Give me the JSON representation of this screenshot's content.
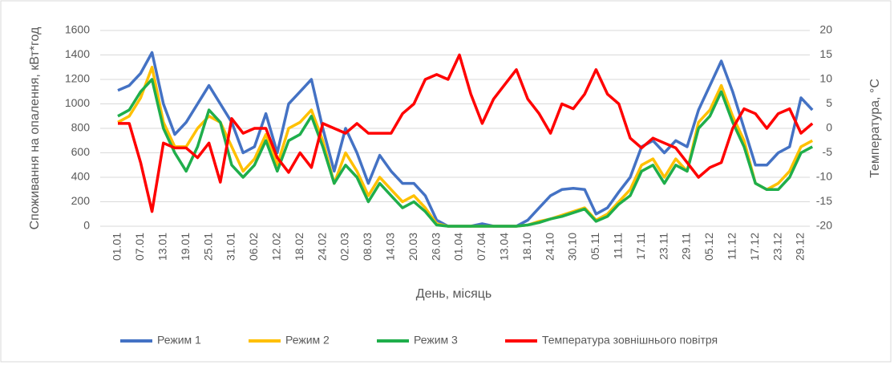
{
  "chart_data": {
    "type": "line",
    "xlabel": "День, місяць",
    "ylabel": "Споживання на опалення, кВт*год",
    "y2label": "Температура, °С",
    "categories": [
      "01.01",
      null,
      "07.01",
      null,
      "13.01",
      null,
      "19.01",
      null,
      "25.01",
      null,
      "31.01",
      null,
      "06.02",
      null,
      "12.02",
      null,
      "18.02",
      null,
      "24.02",
      null,
      "02.03",
      null,
      "08.03",
      null,
      "14.03",
      null,
      "20.03",
      null,
      "26.03",
      null,
      "01.04",
      null,
      "07.04",
      null,
      "13.04",
      null,
      "18.10",
      null,
      "24.10",
      null,
      "30.10",
      null,
      "05.11",
      null,
      "11.11",
      null,
      "17.11",
      null,
      "23.11",
      null,
      "29.11",
      null,
      "05.12",
      null,
      "11.12",
      null,
      "17.12",
      null,
      "23.12",
      null,
      "29.12",
      null
    ],
    "series": [
      {
        "name": "Режим 1",
        "color": "#4472c4",
        "values": [
          1110,
          1150,
          1250,
          1420,
          1000,
          750,
          850,
          1000,
          1150,
          1000,
          850,
          600,
          650,
          920,
          600,
          1000,
          1100,
          1200,
          800,
          450,
          800,
          600,
          350,
          580,
          450,
          350,
          350,
          250,
          50,
          0,
          0,
          0,
          20,
          0,
          0,
          0,
          50,
          150,
          250,
          300,
          310,
          300,
          100,
          150,
          280,
          400,
          650,
          700,
          600,
          700,
          650,
          950,
          1150,
          1350,
          1100,
          800,
          500,
          500,
          600,
          650,
          1050,
          950
        ]
      },
      {
        "name": "Режим 2",
        "color": "#ffc000",
        "values": [
          850,
          900,
          1050,
          1300,
          850,
          650,
          650,
          800,
          900,
          850,
          650,
          450,
          550,
          750,
          500,
          800,
          850,
          950,
          700,
          350,
          600,
          450,
          250,
          400,
          300,
          200,
          250,
          150,
          20,
          0,
          0,
          0,
          0,
          0,
          0,
          0,
          10,
          40,
          60,
          90,
          120,
          150,
          50,
          100,
          200,
          300,
          500,
          550,
          400,
          550,
          450,
          850,
          950,
          1150,
          900,
          700,
          350,
          300,
          350,
          450,
          650,
          700
        ]
      },
      {
        "name": "Режим 3",
        "color": "#1fae4b",
        "values": [
          900,
          950,
          1100,
          1200,
          800,
          600,
          450,
          650,
          950,
          850,
          500,
          400,
          500,
          700,
          450,
          700,
          750,
          900,
          650,
          350,
          500,
          400,
          200,
          350,
          250,
          150,
          200,
          120,
          10,
          0,
          0,
          0,
          0,
          0,
          0,
          0,
          10,
          30,
          60,
          80,
          110,
          140,
          40,
          80,
          180,
          250,
          450,
          500,
          350,
          500,
          450,
          800,
          900,
          1100,
          850,
          650,
          350,
          300,
          300,
          400,
          600,
          650
        ]
      },
      {
        "name": "Температура зовнішнього повітря",
        "color": "#ff0000",
        "axis": "y2",
        "values": [
          1,
          1,
          -7,
          -17,
          -3,
          -4,
          -4,
          -6,
          -3,
          -11,
          2,
          -1,
          0,
          0,
          -6,
          -9,
          -5,
          -8,
          1,
          0,
          -1,
          1,
          -1,
          -1,
          -1,
          3,
          5,
          10,
          11,
          10,
          15,
          7,
          1,
          6,
          9,
          12,
          6,
          3,
          -1,
          5,
          4,
          7,
          12,
          7,
          5,
          -2,
          -4,
          -2,
          -3,
          -4,
          -7,
          -10,
          -8,
          -7,
          0,
          4,
          3,
          0,
          3,
          4,
          -1,
          1
        ]
      }
    ],
    "ylim": [
      0,
      1600
    ],
    "yticks": [
      0,
      200,
      400,
      600,
      800,
      1000,
      1200,
      1400,
      1600
    ],
    "y2lim": [
      -20,
      20
    ],
    "y2ticks": [
      -20,
      -15,
      -10,
      -5,
      0,
      5,
      10,
      15,
      20
    ],
    "grid": true,
    "legend": "bottom"
  }
}
